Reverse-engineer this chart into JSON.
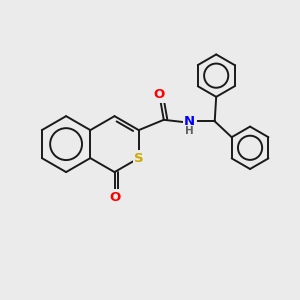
{
  "background_color": "#ebebeb",
  "bond_color": "#1a1a1a",
  "atom_colors": {
    "O": "#ff0000",
    "S": "#ccaa00",
    "N": "#0000ff",
    "H": "#606060"
  },
  "figsize": [
    3.0,
    3.0
  ],
  "dpi": 100,
  "bond_lw": 1.4,
  "font_size": 8.5
}
